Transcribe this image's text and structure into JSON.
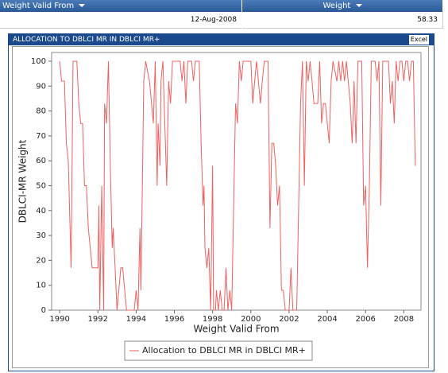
{
  "table": {
    "headers": [
      "Weight Valid From",
      "Weight"
    ],
    "rows": [
      [
        "12-Aug-2008",
        58.33
      ]
    ]
  },
  "panel": {
    "title": "ALLOCATION TO DBLCI MR IN DBLCI MR+",
    "button": "Excel"
  },
  "chart_data": {
    "type": "line",
    "xlabel": "Weight Valid From",
    "ylabel": "DBLCI-MR Weight",
    "x": [
      1990.0,
      1990.1,
      1990.25,
      1990.35,
      1990.45,
      1990.6,
      1990.7,
      1990.9,
      1991.0,
      1991.1,
      1991.2,
      1991.3,
      1991.4,
      1991.5,
      1991.7,
      1991.9,
      1992.0,
      1992.05,
      1992.1,
      1992.2,
      1992.3,
      1992.35,
      1992.45,
      1992.55,
      1992.65,
      1992.75,
      1992.8,
      1992.9,
      1993.0,
      1993.2,
      1993.3,
      1993.4,
      1993.5,
      1993.9,
      1994.0,
      1994.1,
      1994.2,
      1994.25,
      1994.4,
      1994.5,
      1994.7,
      1994.9,
      1995.0,
      1995.1,
      1995.15,
      1995.25,
      1995.3,
      1995.4,
      1995.6,
      1995.7,
      1995.8,
      1995.9,
      1996.3,
      1996.4,
      1996.5,
      1996.6,
      1996.7,
      1996.9,
      1997.0,
      1997.1,
      1997.3,
      1997.4,
      1997.5,
      1997.55,
      1997.6,
      1997.7,
      1997.8,
      1997.9,
      1998.0,
      1998.05,
      1998.15,
      1998.2,
      1998.3,
      1998.4,
      1998.5,
      1998.6,
      1998.7,
      1998.8,
      1998.9,
      1999.0,
      1999.2,
      1999.3,
      1999.4,
      1999.5,
      1999.6,
      1999.8,
      2000.0,
      2000.1,
      2000.2,
      2000.3,
      2000.5,
      2000.6,
      2000.7,
      2000.9,
      2001.0,
      2001.1,
      2001.2,
      2001.3,
      2001.4,
      2001.5,
      2001.6,
      2001.7,
      2001.8,
      2002.0,
      2002.1,
      2002.2,
      2002.4,
      2002.6,
      2002.7,
      2002.8,
      2002.9,
      2003.0,
      2003.1,
      2003.2,
      2003.3,
      2003.5,
      2003.6,
      2003.7,
      2003.8,
      2003.9,
      2004.0,
      2004.1,
      2004.2,
      2004.3,
      2004.5,
      2004.6,
      2004.7,
      2004.8,
      2004.9,
      2005.0,
      2005.2,
      2005.3,
      2005.4,
      2005.5,
      2005.6,
      2005.8,
      2005.9,
      2006.0,
      2006.1,
      2006.2,
      2006.3,
      2006.5,
      2006.6,
      2006.7,
      2006.8,
      2006.9,
      2007.2,
      2007.3,
      2007.4,
      2007.5,
      2007.6,
      2007.7,
      2007.8,
      2007.9,
      2008.0,
      2008.1,
      2008.2,
      2008.3,
      2008.4,
      2008.5,
      2008.6
    ],
    "series": [
      {
        "name": "Allocation to DBLCI MR in DBLCI MR+",
        "color": "#f06060",
        "values": [
          100,
          92,
          92,
          67,
          60,
          17,
          100,
          100,
          83,
          75,
          75,
          50,
          50,
          33,
          17,
          17,
          17,
          42,
          0,
          50,
          0,
          83,
          75,
          100,
          58,
          25,
          33,
          17,
          0,
          17,
          17,
          8,
          0,
          0,
          8,
          0,
          33,
          8,
          92,
          100,
          92,
          75,
          100,
          50,
          75,
          58,
          92,
          100,
          50,
          92,
          83,
          100,
          100,
          92,
          100,
          83,
          100,
          100,
          92,
          100,
          100,
          67,
          42,
          50,
          25,
          17,
          25,
          0,
          58,
          0,
          0,
          8,
          0,
          8,
          0,
          0,
          17,
          0,
          8,
          0,
          83,
          75,
          100,
          92,
          100,
          100,
          100,
          83,
          92,
          100,
          83,
          92,
          100,
          100,
          33,
          67,
          67,
          58,
          42,
          50,
          8,
          8,
          0,
          0,
          17,
          0,
          0,
          83,
          100,
          50,
          100,
          92,
          100,
          92,
          83,
          83,
          100,
          75,
          83,
          83,
          75,
          67,
          92,
          100,
          92,
          100,
          92,
          100,
          92,
          100,
          83,
          67,
          92,
          67,
          100,
          100,
          42,
          50,
          17,
          50,
          100,
          100,
          92,
          100,
          42,
          100,
          100,
          83,
          92,
          75,
          100,
          92,
          100,
          100,
          92,
          100,
          100,
          92,
          100,
          100,
          58
        ]
      }
    ],
    "xlim": [
      1989.58,
      2008.9
    ],
    "xticks": [
      1990,
      1992,
      1994,
      1996,
      1998,
      2000,
      2002,
      2004,
      2006,
      2008
    ],
    "ylim": [
      0,
      103.5
    ],
    "yticks": [
      0,
      10,
      20,
      30,
      40,
      50,
      60,
      70,
      80,
      90,
      100
    ],
    "grid": false,
    "legend": "bottom"
  }
}
